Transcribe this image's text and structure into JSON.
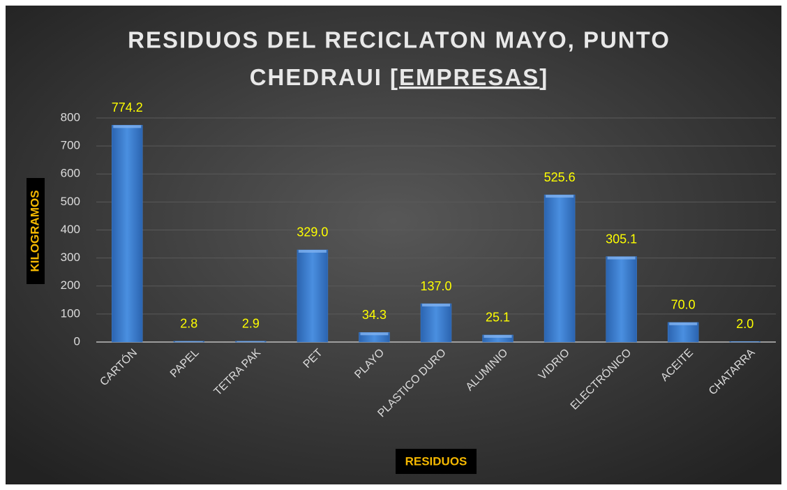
{
  "chart_data": {
    "type": "bar",
    "title": [
      "RESIDUOS DEL RECICLATON MAYO, PUNTO",
      "CHEDRAUI [",
      "EMPRESAS",
      "]"
    ],
    "xlabel": "RESIDUOS",
    "ylabel": "KILOGRAMOS",
    "categories": [
      "CARTÓN",
      "PAPEL",
      "TETRA PAK",
      "PET",
      "PLAYO",
      "PLASTICO DURO",
      "ALUMINIO",
      "VIDRIO",
      "ELECTRÓNICO",
      "ACEITE",
      "CHATARRA"
    ],
    "values": [
      774.2,
      2.8,
      2.9,
      329.0,
      34.3,
      137.0,
      25.1,
      525.6,
      305.1,
      70.0,
      2.0
    ],
    "value_labels": [
      "774.2",
      "2.8",
      "2.9",
      "329.0",
      "34.3",
      "137.0",
      "25.1",
      "525.6",
      "305.1",
      "70.0",
      "2.0"
    ],
    "color": "#3f7fd0",
    "ylim": [
      0,
      800
    ],
    "yticks": [
      0,
      100,
      200,
      300,
      400,
      500,
      600,
      700,
      800
    ],
    "grid": true
  }
}
